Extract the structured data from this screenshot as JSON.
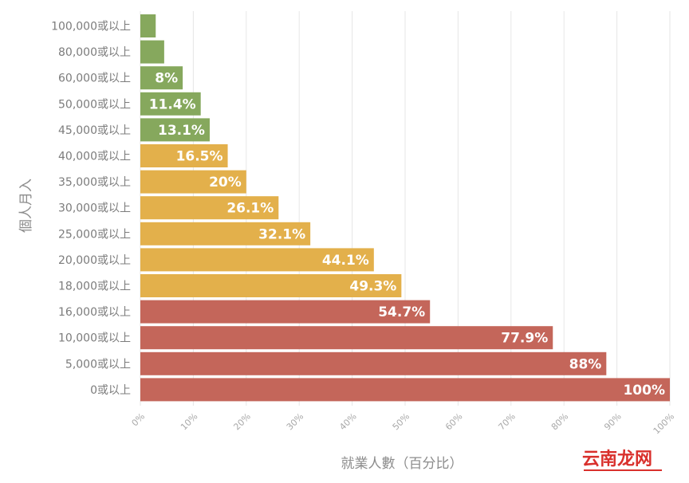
{
  "chart_data": {
    "type": "bar",
    "orientation": "horizontal",
    "categories": [
      "100,000或以上",
      "80,000或以上",
      "60,000或以上",
      "50,000或以上",
      "45,000或以上",
      "40,000或以上",
      "35,000或以上",
      "30,000或以上",
      "25,000或以上",
      "20,000或以上",
      "18,000或以上",
      "16,000或以上",
      "10,000或以上",
      "5,000或以上",
      "0或以上"
    ],
    "values": [
      2.9,
      4.5,
      8,
      11.4,
      13.1,
      16.5,
      20,
      26.1,
      32.1,
      44.1,
      49.3,
      54.7,
      77.9,
      88,
      100
    ],
    "data_labels": [
      "",
      "",
      "8%",
      "11.4%",
      "13.1%",
      "16.5%",
      "20%",
      "26.1%",
      "32.1%",
      "44.1%",
      "49.3%",
      "54.7%",
      "77.9%",
      "88%",
      "100%"
    ],
    "bar_colors": [
      "#86a85d",
      "#86a85d",
      "#86a85d",
      "#86a85d",
      "#86a85d",
      "#e3b04b",
      "#e3b04b",
      "#e3b04b",
      "#e3b04b",
      "#e3b04b",
      "#e3b04b",
      "#c4665a",
      "#c4665a",
      "#c4665a",
      "#c4665a"
    ],
    "xlabel": "就業人數（百分比）",
    "ylabel": "個人月入",
    "xlim": [
      0,
      100
    ],
    "xticks": [
      "0%",
      "10%",
      "20%",
      "30%",
      "40%",
      "50%",
      "60%",
      "70%",
      "80%",
      "90%",
      "100%"
    ],
    "grid": "vertical"
  },
  "watermark": {
    "text": "云南龙网"
  }
}
